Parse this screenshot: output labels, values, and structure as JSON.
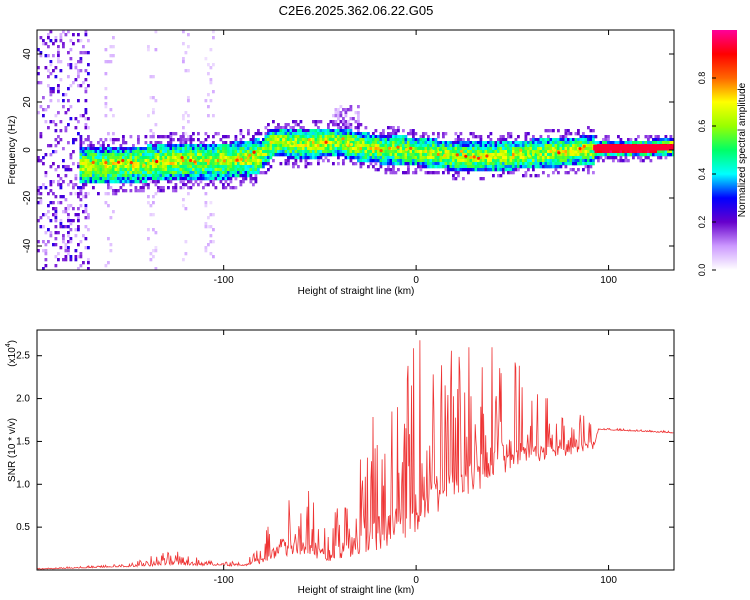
{
  "title": "C2E6.2025.362.06.22.G05",
  "chart_data": [
    {
      "type": "heatmap",
      "name": "spectrogram",
      "xlabel": "Height of straight line (km)",
      "ylabel": "Frequency (Hz)",
      "xlim": [
        -197,
        134
      ],
      "ylim": [
        -50,
        50
      ],
      "xticks": [
        -100,
        0,
        100
      ],
      "yticks": [
        -40,
        -20,
        0,
        20,
        40
      ],
      "ridge": [
        {
          "x": -175,
          "y": -6
        },
        {
          "x": -160,
          "y": -6
        },
        {
          "x": -140,
          "y": -5
        },
        {
          "x": -120,
          "y": -4
        },
        {
          "x": -100,
          "y": -4
        },
        {
          "x": -90,
          "y": -3
        },
        {
          "x": -82,
          "y": -2
        },
        {
          "x": -75,
          "y": 4
        },
        {
          "x": -60,
          "y": 3
        },
        {
          "x": -40,
          "y": 4
        },
        {
          "x": -30,
          "y": 2
        },
        {
          "x": -20,
          "y": 1
        },
        {
          "x": 0,
          "y": 0
        },
        {
          "x": 20,
          "y": -2
        },
        {
          "x": 40,
          "y": -2
        },
        {
          "x": 60,
          "y": -1
        },
        {
          "x": 80,
          "y": 0
        },
        {
          "x": 95,
          "y": 1
        },
        {
          "x": 110,
          "y": 1
        },
        {
          "x": 134,
          "y": 2
        }
      ],
      "colorbar": {
        "label": "Normalized spectral amplitude",
        "range": [
          0,
          1
        ],
        "ticks": [
          "0.0",
          "0.2",
          "0.4",
          "0.6",
          "0.8"
        ],
        "colors": [
          "#ffffff",
          "#cc99ff",
          "#6600cc",
          "#0000ff",
          "#00ffff",
          "#00ff66",
          "#99ff00",
          "#ffff00",
          "#ff6600",
          "#ff0000",
          "#ff0099"
        ]
      },
      "line_color": "#ff0000"
    },
    {
      "type": "line",
      "name": "snr",
      "xlabel": "Height of straight line (km)",
      "ylabel": "SNR (10 * v/v)",
      "scale_label": "(x10",
      "scale_exp": "4",
      "xlim": [
        -197,
        134
      ],
      "ylim": [
        0,
        2.8
      ],
      "xticks": [
        -100,
        0,
        100
      ],
      "yticks": [
        "0.5",
        "1.0",
        "1.5",
        "2.0",
        "2.5"
      ],
      "ytick_values": [
        0.5,
        1.0,
        1.5,
        2.0,
        2.5
      ],
      "color": "#ee3333",
      "envelope": [
        {
          "x": -197,
          "base": 0.01,
          "amp": 0.01
        },
        {
          "x": -150,
          "base": 0.04,
          "amp": 0.03
        },
        {
          "x": -125,
          "base": 0.08,
          "amp": 0.18
        },
        {
          "x": -110,
          "base": 0.06,
          "amp": 0.06
        },
        {
          "x": -90,
          "base": 0.05,
          "amp": 0.06
        },
        {
          "x": -80,
          "base": 0.1,
          "amp": 0.25
        },
        {
          "x": -70,
          "base": 0.25,
          "amp": 0.7
        },
        {
          "x": -55,
          "base": 0.25,
          "amp": 0.8
        },
        {
          "x": -45,
          "base": 0.15,
          "amp": 0.4
        },
        {
          "x": -35,
          "base": 0.25,
          "amp": 0.8
        },
        {
          "x": -25,
          "base": 0.4,
          "amp": 1.6
        },
        {
          "x": -10,
          "base": 0.5,
          "amp": 1.5
        },
        {
          "x": 0,
          "base": 0.7,
          "amp": 2.0
        },
        {
          "x": 15,
          "base": 0.9,
          "amp": 1.7
        },
        {
          "x": 30,
          "base": 1.1,
          "amp": 1.7
        },
        {
          "x": 45,
          "base": 1.3,
          "amp": 1.4
        },
        {
          "x": 60,
          "base": 1.35,
          "amp": 0.8
        },
        {
          "x": 80,
          "base": 1.4,
          "amp": 0.45
        },
        {
          "x": 92,
          "base": 1.45,
          "amp": 0.35
        },
        {
          "x": 95,
          "base": 1.64,
          "amp": 0.02
        },
        {
          "x": 134,
          "base": 1.6,
          "amp": 0.02
        }
      ]
    }
  ]
}
